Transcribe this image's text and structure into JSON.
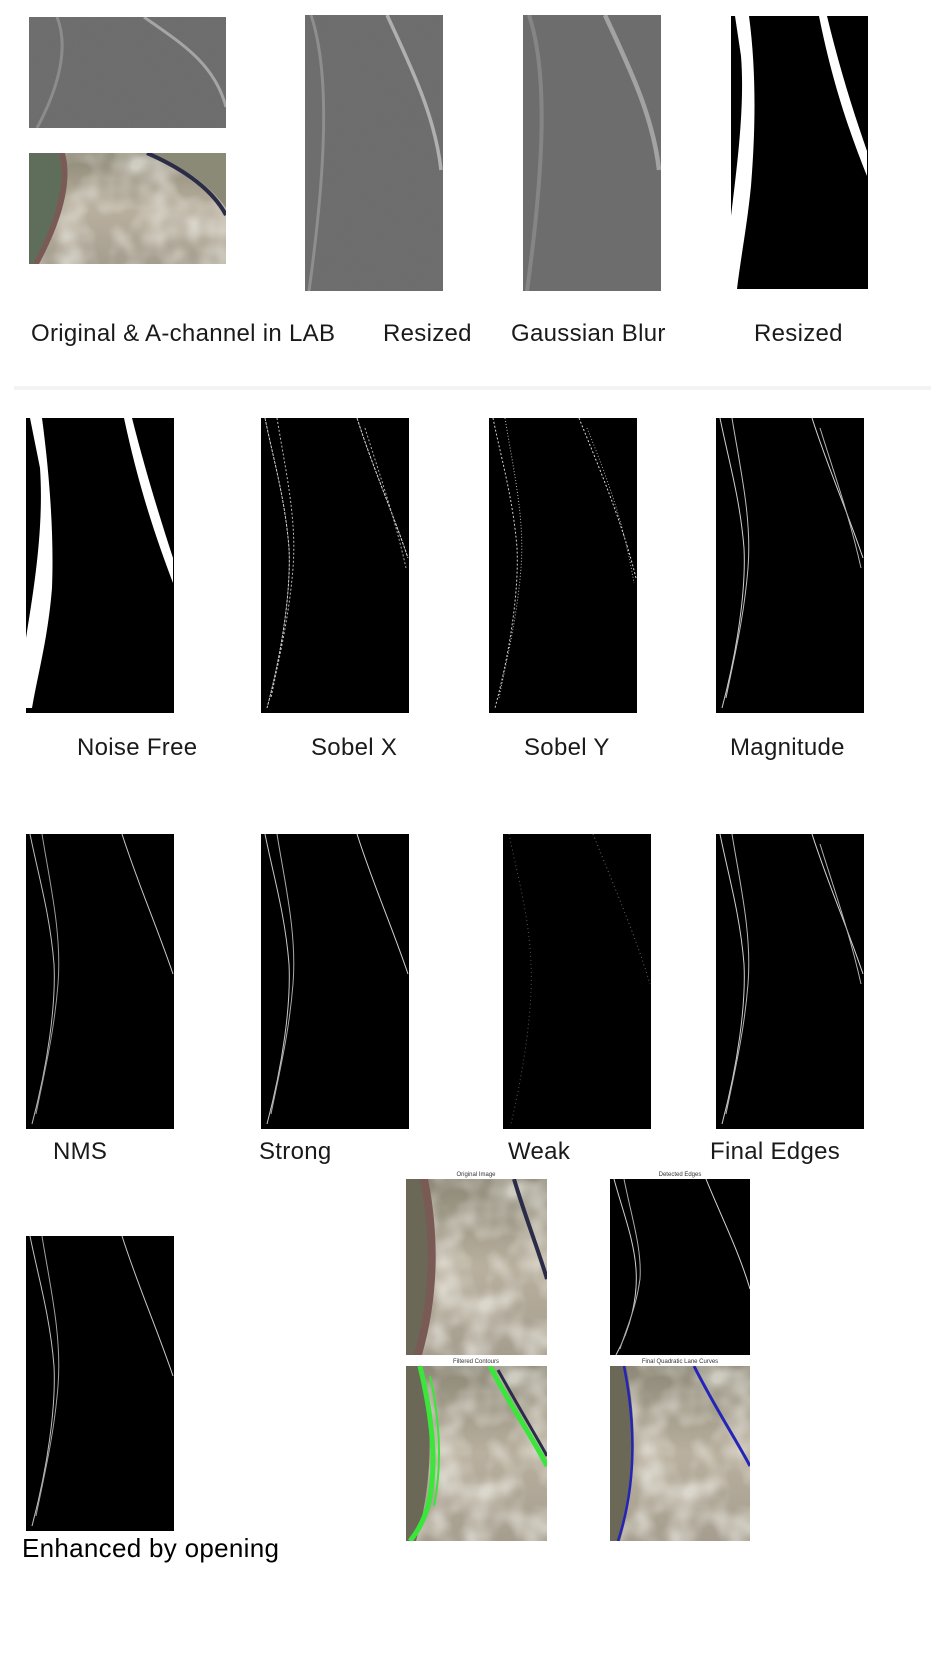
{
  "stage_labels": {
    "original_a_channel": "Original & A-channel in LAB",
    "resized_gray": "Resized",
    "gaussian_blur": "Gaussian Blur",
    "resized_binary": "Resized",
    "noise_free": "Noise Free",
    "sobel_x": "Sobel X",
    "sobel_y": "Sobel Y",
    "magnitude": "Magnitude",
    "nms": "NMS",
    "strong": "Strong",
    "weak": "Weak",
    "final_edges": "Final Edges",
    "enhanced": "Enhanced by opening"
  },
  "result_figure_titles": {
    "original_image": "Original Image",
    "detected_edges": "Detected Edges",
    "filtered_contours": "Filtered Contours",
    "final_curves": "Final Quadratic Lane Curves"
  },
  "colors": {
    "road": "#b6ad9c",
    "gray_channel": "#6e6e6e",
    "contour_green": "#39e639",
    "curve_blue": "#2424b8"
  }
}
